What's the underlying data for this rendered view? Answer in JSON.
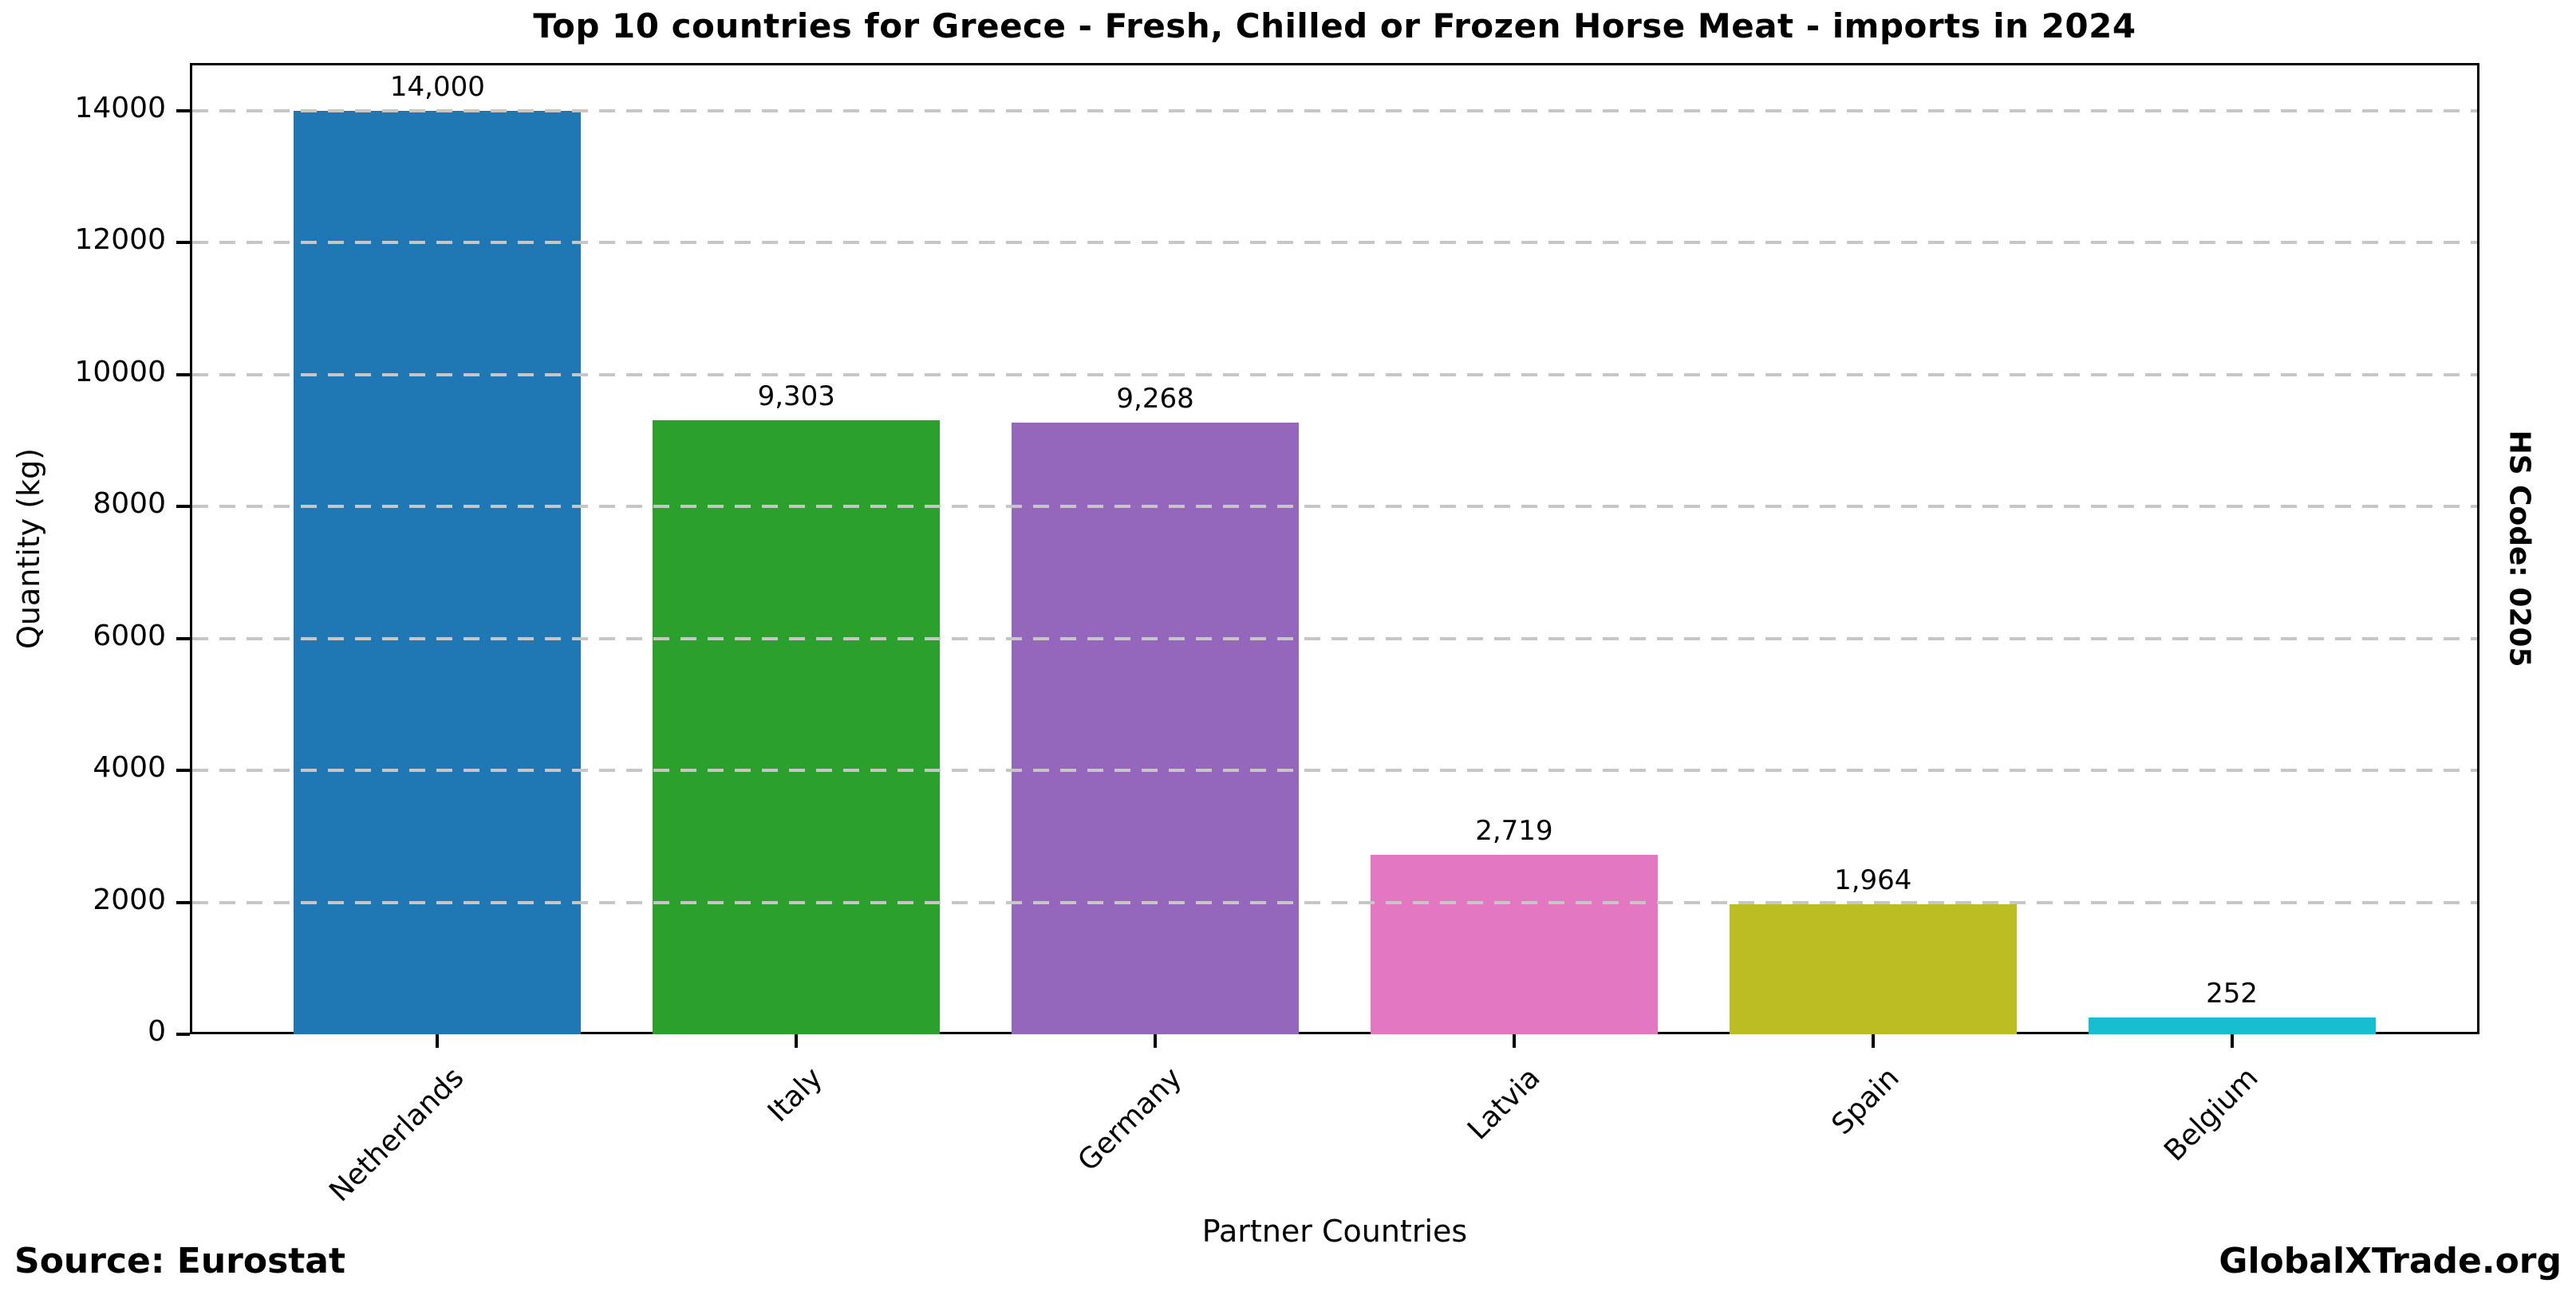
{
  "title": "Top 10 countries for Greece - Fresh, Chilled or Frozen Horse Meat - imports in 2024",
  "right_label": "HS Code: 0205",
  "footer": {
    "source": "Source: Eurostat",
    "branding": "GlobalXTrade.org"
  },
  "chart_data": {
    "type": "bar",
    "title": "Top 10 countries for Greece - Fresh, Chilled or Frozen Horse Meat - imports in 2024",
    "xlabel": "Partner Countries",
    "ylabel": "Quantity (kg)",
    "categories": [
      "Netherlands",
      "Italy",
      "Germany",
      "Latvia",
      "Spain",
      "Belgium"
    ],
    "values": [
      14000,
      9303,
      9268,
      2719,
      1964,
      252
    ],
    "value_labels": [
      "14,000",
      "9,303",
      "9,268",
      "2,719",
      "1,964",
      "252"
    ],
    "bar_colors": [
      "#1f77b4",
      "#2ca02c",
      "#9467bd",
      "#e377c2",
      "#bcbd22",
      "#17becf"
    ],
    "yticks": [
      0,
      2000,
      4000,
      6000,
      8000,
      10000,
      12000,
      14000
    ],
    "ylim": [
      0,
      14720
    ],
    "grid": "horizontal dashed gridlines, drawn above bars, color #c6c6c6",
    "legend": "none",
    "background": "#ffffff"
  }
}
